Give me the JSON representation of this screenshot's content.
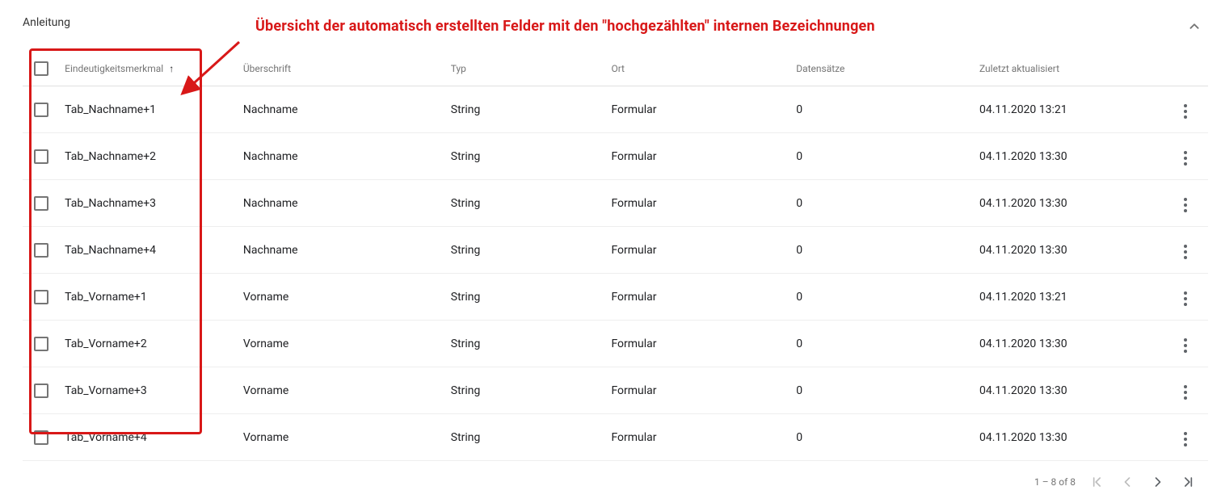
{
  "section_title": "Anleitung",
  "annotation_text": "Übersicht der automatisch erstellten Felder mit den \"hochgezählten\" internen Bezeichnungen",
  "annotation_color": "#d81818",
  "highlight_border_color": "#d81818",
  "columns": {
    "id": "Eindeutigkeitsmerkmal",
    "heading": "Überschrift",
    "type": "Typ",
    "location": "Ort",
    "count": "Datensätze",
    "updated": "Zuletzt aktualisiert"
  },
  "sort_arrow_glyph": "↑",
  "rows": [
    {
      "id": "Tab_Nachname+1",
      "heading": "Nachname",
      "type": "String",
      "location": "Formular",
      "count": "0",
      "updated": "04.11.2020 13:21"
    },
    {
      "id": "Tab_Nachname+2",
      "heading": "Nachname",
      "type": "String",
      "location": "Formular",
      "count": "0",
      "updated": "04.11.2020 13:30"
    },
    {
      "id": "Tab_Nachname+3",
      "heading": "Nachname",
      "type": "String",
      "location": "Formular",
      "count": "0",
      "updated": "04.11.2020 13:30"
    },
    {
      "id": "Tab_Nachname+4",
      "heading": "Nachname",
      "type": "String",
      "location": "Formular",
      "count": "0",
      "updated": "04.11.2020 13:30"
    },
    {
      "id": "Tab_Vorname+1",
      "heading": "Vorname",
      "type": "String",
      "location": "Formular",
      "count": "0",
      "updated": "04.11.2020 13:21"
    },
    {
      "id": "Tab_Vorname+2",
      "heading": "Vorname",
      "type": "String",
      "location": "Formular",
      "count": "0",
      "updated": "04.11.2020 13:30"
    },
    {
      "id": "Tab_Vorname+3",
      "heading": "Vorname",
      "type": "String",
      "location": "Formular",
      "count": "0",
      "updated": "04.11.2020 13:30"
    },
    {
      "id": "Tab_Vorname+4",
      "heading": "Vorname",
      "type": "String",
      "location": "Formular",
      "count": "0",
      "updated": "04.11.2020 13:30"
    }
  ],
  "paginator": {
    "range_label": "1 – 8 of 8",
    "first_enabled": false,
    "prev_enabled": false,
    "next_enabled": true,
    "last_enabled": true
  }
}
